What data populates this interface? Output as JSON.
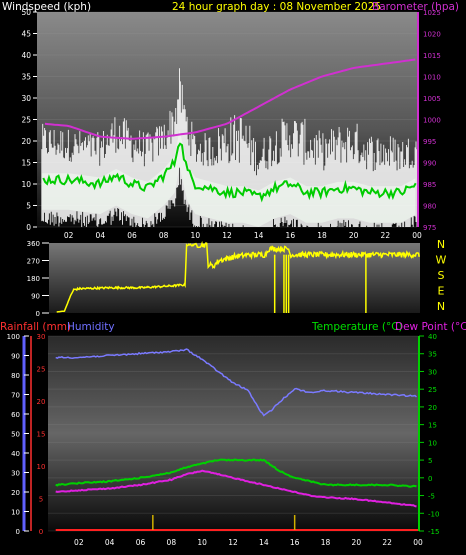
{
  "colors": {
    "background": "#000000",
    "wind_label": "#ffffff",
    "gust": "#ffffff",
    "avg_wind": "#00cc00",
    "wind_band": "#b0f0b0",
    "barometer": "#d030d0",
    "direction": "#ffff00",
    "rain": "#ff2020",
    "humidity": "#7a7aff",
    "temperature": "#00d000",
    "dewpoint": "#e020e0",
    "title": "#ffff00",
    "tick": "#ffffff",
    "axis_rain": "#ff3030",
    "axis_hum": "#7070ff",
    "axis_temp": "#00e000",
    "compass": "#ffff00"
  },
  "header": {
    "title": "24 hour graph day : 08 November 2025",
    "wind_label": "Windspeed (kph)",
    "baro_label": "Barometer (hpa)"
  },
  "footer_labels": {
    "rain": "Rainfall (mm)",
    "humidity": "Humidity",
    "temperature": "Temperature (°C)",
    "dewpoint": "Dew Point (°C)"
  },
  "chart_data": [
    {
      "type": "line",
      "title": "24 hour graph day : 08 November 2025",
      "x_ticks": [
        "02",
        "04",
        "06",
        "08",
        "10",
        "12",
        "14",
        "16",
        "18",
        "20",
        "22",
        "00"
      ],
      "y_left": {
        "label": "Windspeed (kph)",
        "ticks": [
          0,
          5,
          10,
          15,
          20,
          25,
          30,
          35,
          40,
          45,
          50
        ],
        "range": [
          0,
          50
        ]
      },
      "y_right": {
        "label": "Barometer (hpa)",
        "ticks": [
          975,
          980,
          985,
          990,
          995,
          1000,
          1005,
          1010,
          1015,
          1020,
          1025
        ],
        "range": [
          975,
          1025
        ]
      },
      "series": [
        {
          "name": "Barometer",
          "axis": "right",
          "x": [
            0.5,
            2,
            4,
            6,
            8,
            9,
            10,
            12,
            14,
            16,
            18,
            20,
            22,
            24
          ],
          "values": [
            999,
            998.5,
            996,
            995.5,
            996,
            996.5,
            997,
            999,
            1003,
            1007,
            1010,
            1012,
            1013,
            1014
          ]
        },
        {
          "name": "Average wind",
          "axis": "left",
          "x": [
            0.5,
            2,
            4,
            5,
            6,
            7,
            8,
            8.7,
            9,
            9.5,
            10,
            11,
            12,
            13,
            14,
            15,
            16,
            17,
            18,
            19,
            20,
            21,
            22,
            23,
            24
          ],
          "values": [
            11,
            11,
            10,
            12,
            10,
            9,
            12,
            15,
            21,
            13,
            10,
            9,
            8,
            8,
            7,
            9,
            10,
            8,
            8,
            9,
            9,
            8,
            8,
            8,
            10
          ]
        },
        {
          "name": "Wind gust",
          "axis": "left",
          "x": [
            0.5,
            2,
            4,
            5,
            6,
            7,
            8,
            8.7,
            9,
            9.5,
            10,
            11,
            12,
            13,
            14,
            15,
            16,
            17,
            18,
            19,
            20,
            21,
            22,
            23,
            24
          ],
          "values": [
            24,
            23,
            22,
            27,
            24,
            22,
            25,
            30,
            37,
            28,
            22,
            22,
            26,
            27,
            20,
            24,
            27,
            25,
            22,
            24,
            25,
            22,
            22,
            21,
            22
          ]
        }
      ]
    },
    {
      "type": "line",
      "title": "",
      "x_ticks": [],
      "y_left": {
        "label": "",
        "ticks": [
          0,
          90,
          180,
          270,
          360
        ],
        "range": [
          0,
          360
        ]
      },
      "compass_labels": [
        "N",
        "W",
        "S",
        "E",
        "N"
      ],
      "series": [
        {
          "name": "Wind direction",
          "x": [
            0.5,
            1.0,
            1.4,
            1.6,
            2,
            4,
            6,
            7,
            8,
            8.8,
            8.9,
            9.0,
            10.2,
            10.3,
            10.6,
            11,
            12,
            13,
            14,
            14.2,
            15.5,
            15.6,
            16,
            18,
            20,
            22,
            24
          ],
          "values": [
            5,
            10,
            90,
            120,
            125,
            130,
            130,
            135,
            140,
            145,
            350,
            350,
            350,
            250,
            240,
            270,
            290,
            300,
            300,
            330,
            330,
            300,
            300,
            300,
            300,
            300,
            300
          ]
        }
      ]
    },
    {
      "type": "line",
      "title": "",
      "x_ticks": [
        "02",
        "04",
        "06",
        "08",
        "10",
        "12",
        "14",
        "16",
        "18",
        "20",
        "22",
        "00"
      ],
      "y_left_rain": {
        "label": "Rainfall (mm)",
        "ticks": [
          0,
          5,
          10,
          15,
          20,
          25,
          30
        ],
        "range": [
          0,
          30
        ]
      },
      "y_left_hum": {
        "label": "Humidity",
        "ticks": [
          0,
          10,
          20,
          30,
          40,
          50,
          60,
          70,
          80,
          90,
          100
        ],
        "range": [
          0,
          100
        ]
      },
      "y_right": {
        "label": "Temperature (°C)",
        "ticks": [
          -15,
          -10,
          -5,
          0,
          5,
          10,
          15,
          20,
          25,
          30,
          35,
          40
        ],
        "range": [
          -15,
          40
        ]
      },
      "series": [
        {
          "name": "Humidity",
          "axis": "hum",
          "x": [
            0.5,
            2,
            4,
            6,
            8,
            9,
            10,
            11,
            12,
            13,
            13.5,
            14,
            14.5,
            15,
            16,
            17,
            18,
            20,
            22,
            24
          ],
          "values": [
            89,
            89,
            90,
            91,
            92,
            93,
            88,
            82,
            76,
            72,
            65,
            59,
            62,
            66,
            73,
            71,
            72,
            71,
            70,
            69
          ]
        },
        {
          "name": "Temperature",
          "axis": "temp",
          "x": [
            0.5,
            2,
            4,
            6,
            8,
            9,
            10,
            11,
            12,
            13,
            14,
            15,
            16,
            17,
            18,
            20,
            22,
            24
          ],
          "values": [
            -2,
            -1.5,
            -1,
            0,
            1.5,
            3,
            4,
            5,
            5,
            5,
            5,
            2,
            0,
            -1,
            -2,
            -2,
            -2,
            -2.5
          ]
        },
        {
          "name": "Dew Point",
          "axis": "temp",
          "x": [
            0.5,
            2,
            4,
            6,
            8,
            9,
            10,
            11,
            12,
            13,
            14,
            15,
            16,
            17,
            18,
            20,
            22,
            24
          ],
          "values": [
            -4,
            -3.5,
            -3,
            -2,
            -0.5,
            1,
            2,
            1,
            0,
            -1,
            -2,
            -3,
            -4,
            -5,
            -5.5,
            -6,
            -7,
            -8
          ]
        },
        {
          "name": "Rainfall",
          "axis": "rain",
          "x": [
            0.5,
            24
          ],
          "values": [
            0,
            0
          ]
        }
      ],
      "rain_ticks": [
        6.8,
        16.0
      ]
    }
  ]
}
